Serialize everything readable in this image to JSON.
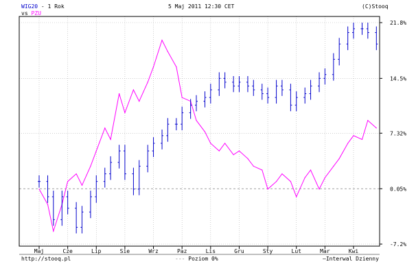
{
  "header": {
    "series1_name": "WIG20",
    "series1_suffix": "- 1 Rok",
    "vs_label": "vs",
    "series2_name": "PZU",
    "date": "5 Maj 2011 12:30 CET",
    "copyright": "(C)Stooq"
  },
  "footer": {
    "url": "http://stooq.pl",
    "level_legend": "Poziom 0%",
    "interval": "Interwal Dzienny"
  },
  "colors": {
    "series1": "#0000cc",
    "series2": "#ff00ff",
    "grid": "#b0b0b0",
    "zero_line": "#808080"
  },
  "chart_data": {
    "type": "line",
    "x_unit": "month",
    "categories": [
      "Maj",
      "Cze",
      "Lip",
      "Sie",
      "Wrz",
      "Paz",
      "Lis",
      "Gru",
      "Sty",
      "Lut",
      "Mar",
      "Kwi"
    ],
    "y_ticks": [
      "21.8%",
      "14.5%",
      "7.32%",
      "0.05%",
      "-7.2%"
    ],
    "y_tick_values": [
      21.8,
      14.5,
      7.32,
      0.05,
      -7.2
    ],
    "ylim": [
      -7.2,
      21.8
    ],
    "zero_level": 0.05,
    "grid": true,
    "series": [
      {
        "name": "WIG20",
        "style": "ohlc-bars",
        "x": [
          0,
          0.3,
          0.5,
          0.8,
          1.0,
          1.3,
          1.5,
          1.8,
          2.0,
          2.3,
          2.5,
          2.8,
          3.0,
          3.3,
          3.5,
          3.8,
          4.0,
          4.3,
          4.5,
          4.8,
          5.0,
          5.3,
          5.5,
          5.8,
          6.0,
          6.3,
          6.5,
          6.8,
          7.0,
          7.3,
          7.5,
          7.8,
          8.0,
          8.3,
          8.5,
          8.8,
          9.0,
          9.3,
          9.5,
          9.8,
          10.0,
          10.3,
          10.5,
          10.8,
          11.0,
          11.3,
          11.5,
          11.8
        ],
        "values": [
          1.0,
          -1.0,
          -4.0,
          -1.0,
          -2.5,
          -5.0,
          -3.0,
          -1.0,
          1.0,
          2.0,
          3.5,
          5.0,
          2.0,
          0.0,
          3.0,
          5.0,
          6.0,
          7.0,
          8.5,
          8.5,
          10.0,
          11.0,
          11.5,
          12.0,
          13.0,
          14.5,
          14.0,
          13.5,
          14.0,
          13.5,
          13.0,
          12.5,
          12.0,
          13.5,
          13.0,
          11.0,
          12.0,
          12.5,
          13.5,
          14.5,
          15.0,
          17.0,
          19.0,
          20.5,
          21.0,
          21.0,
          20.5,
          19.0
        ]
      },
      {
        "name": "PZU",
        "style": "line",
        "x": [
          0,
          0.3,
          0.5,
          0.8,
          1.0,
          1.3,
          1.5,
          1.8,
          2.0,
          2.3,
          2.5,
          2.8,
          3.0,
          3.3,
          3.5,
          3.8,
          4.0,
          4.3,
          4.5,
          4.8,
          5.0,
          5.3,
          5.5,
          5.8,
          6.0,
          6.3,
          6.5,
          6.8,
          7.0,
          7.3,
          7.5,
          7.8,
          8.0,
          8.3,
          8.5,
          8.8,
          9.0,
          9.3,
          9.5,
          9.8,
          10.0,
          10.3,
          10.5,
          10.8,
          11.0,
          11.3,
          11.5,
          11.8
        ],
        "values": [
          0.0,
          -2.0,
          -5.5,
          -2.0,
          1.0,
          2.0,
          0.5,
          3.0,
          5.0,
          8.0,
          6.5,
          12.5,
          10.0,
          13.0,
          11.5,
          14.0,
          16.0,
          19.5,
          18.0,
          16.0,
          12.0,
          11.5,
          9.0,
          7.5,
          6.0,
          5.0,
          6.0,
          4.5,
          5.0,
          4.0,
          3.0,
          2.5,
          0.0,
          1.0,
          2.0,
          1.0,
          -1.0,
          1.5,
          2.5,
          0.0,
          1.5,
          3.0,
          4.0,
          6.0,
          7.0,
          6.5,
          9.0,
          8.0
        ]
      }
    ]
  }
}
